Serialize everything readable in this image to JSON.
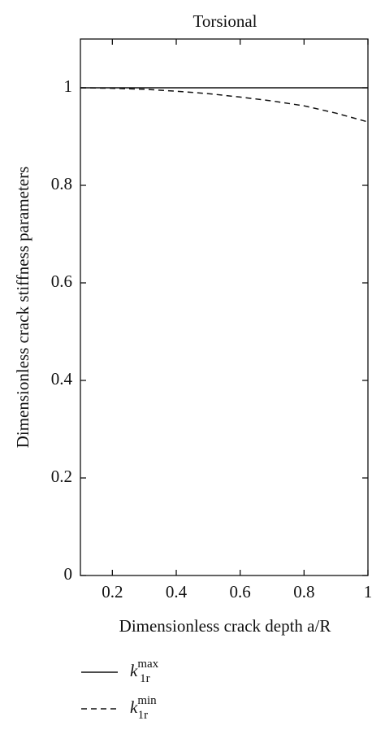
{
  "chart_data": {
    "type": "line",
    "title": "Torsional",
    "x_label": "Dimensionless crack depth a/R",
    "y_label": "Dimensionless crack stiffness parameters",
    "x": [
      0.1,
      0.2,
      0.3,
      0.4,
      0.5,
      0.6,
      0.7,
      0.8,
      0.9,
      1.0
    ],
    "series": [
      {
        "name": "k_{1r}^{max}",
        "color": "#111111",
        "dash": "solid",
        "values": [
          1,
          1,
          1,
          1,
          1,
          1,
          1,
          1,
          1,
          1
        ]
      },
      {
        "name": "k_{1r}^{min}",
        "color": "#111111",
        "dash": "dashed",
        "values": [
          1,
          0.999,
          0.997,
          0.993,
          0.988,
          0.981,
          0.973,
          0.963,
          0.948,
          0.93
        ]
      }
    ],
    "xlim": [
      0.1,
      1
    ],
    "xticks": [
      0.2,
      0.4,
      0.6,
      0.8,
      1
    ],
    "ylim": [
      0,
      1.1
    ],
    "yticks": [
      0,
      0.2,
      0.4,
      0.6,
      0.8,
      1
    ],
    "grid": false,
    "legend": "bottom"
  }
}
